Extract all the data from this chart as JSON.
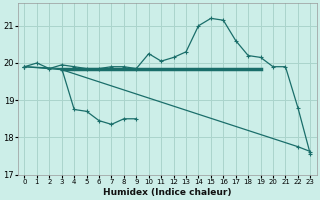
{
  "xlabel": "Humidex (Indice chaleur)",
  "bg_color": "#cceee8",
  "grid_color": "#aad4cc",
  "line_color": "#1a6e6a",
  "xlim": [
    -0.5,
    23.5
  ],
  "ylim": [
    17,
    21.6
  ],
  "xticks": [
    0,
    1,
    2,
    3,
    4,
    5,
    6,
    7,
    8,
    9,
    10,
    11,
    12,
    13,
    14,
    15,
    16,
    17,
    18,
    19,
    20,
    21,
    22,
    23
  ],
  "yticks": [
    17,
    18,
    19,
    20,
    21
  ],
  "series1_x": [
    0,
    1,
    2,
    3,
    4,
    5,
    6,
    7,
    8,
    9,
    10,
    11,
    12,
    13,
    14,
    15,
    16,
    17,
    18,
    19,
    20,
    21,
    22,
    23
  ],
  "series1_y": [
    19.9,
    20.0,
    19.85,
    19.95,
    19.9,
    19.85,
    19.85,
    19.9,
    19.9,
    19.85,
    20.25,
    20.05,
    20.15,
    20.3,
    21.0,
    21.2,
    21.15,
    20.6,
    20.2,
    20.15,
    19.9,
    19.9,
    18.8,
    17.55
  ],
  "series2_x": [
    0,
    3,
    4,
    5,
    6,
    7,
    8,
    9
  ],
  "series2_y": [
    19.9,
    19.85,
    18.75,
    18.7,
    18.45,
    18.35,
    18.5,
    18.5
  ],
  "series3_x": [
    0,
    3,
    22,
    23
  ],
  "series3_y": [
    19.9,
    19.82,
    17.75,
    17.62
  ],
  "hline_x": [
    3,
    19
  ],
  "hline_y": [
    19.85,
    19.85
  ]
}
